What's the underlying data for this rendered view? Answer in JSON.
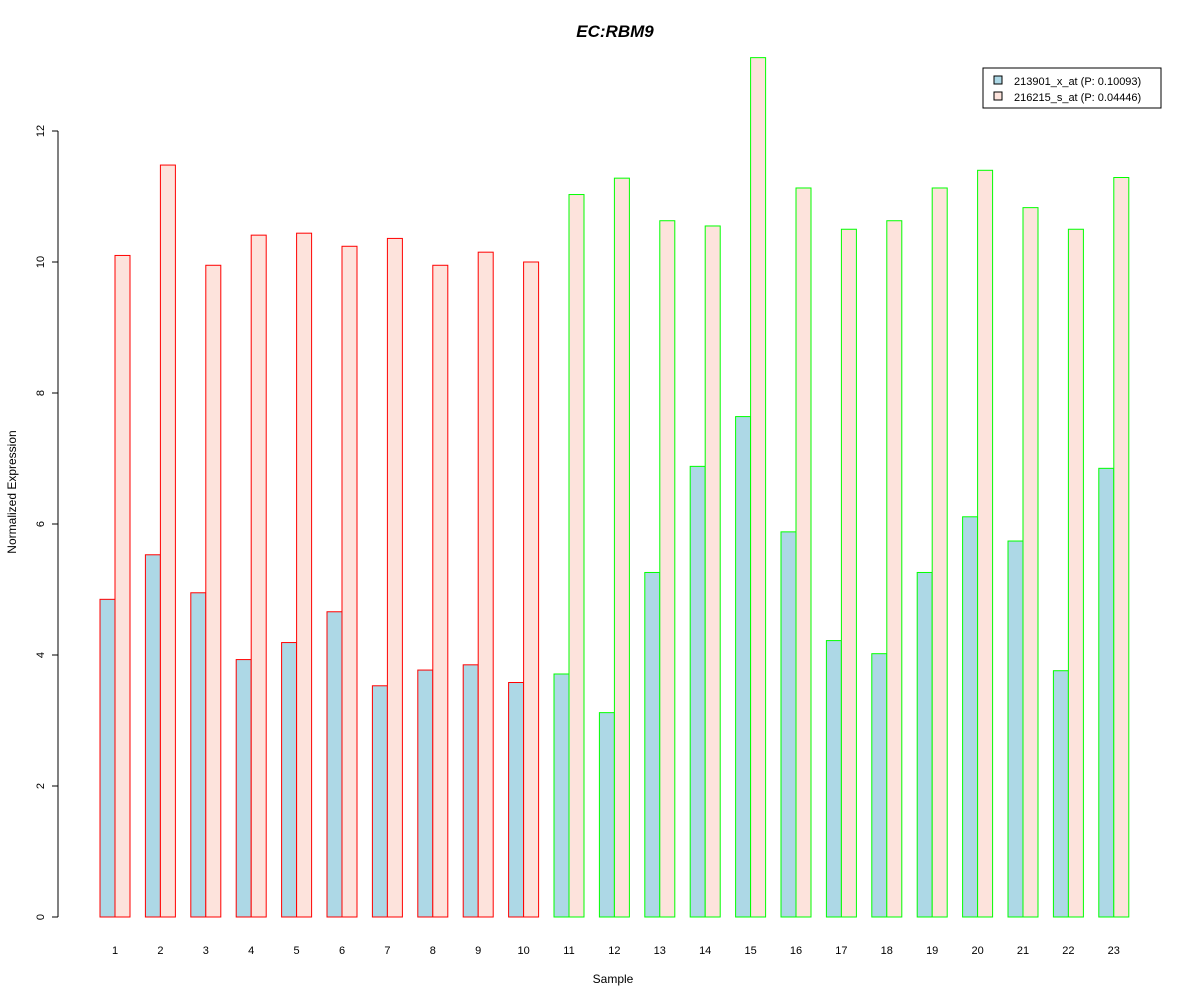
{
  "chart_data": {
    "type": "bar",
    "title": "EC:RBM9",
    "title_color": "#0000CC",
    "xlabel": "Sample",
    "ylabel": "Normalized Expression",
    "ylim": [
      0,
      13.5
    ],
    "yticks": [
      0,
      2,
      4,
      6,
      8,
      10,
      12
    ],
    "grid": false,
    "legend_position": "top-right",
    "categories": [
      "1",
      "2",
      "3",
      "4",
      "5",
      "6",
      "7",
      "8",
      "9",
      "10",
      "11",
      "12",
      "13",
      "14",
      "15",
      "16",
      "17",
      "18",
      "19",
      "20",
      "21",
      "22",
      "23"
    ],
    "series": [
      {
        "name": "213901_x_at (P: 0.10093)",
        "fill": "#ADD8E6",
        "values": [
          4.85,
          5.53,
          4.95,
          3.93,
          4.19,
          4.66,
          3.53,
          3.77,
          3.85,
          3.58,
          3.71,
          3.12,
          5.26,
          6.88,
          7.64,
          5.88,
          4.22,
          4.02,
          5.26,
          6.11,
          5.74,
          3.76,
          6.85
        ]
      },
      {
        "name": "216215_s_at (P: 0.04446)",
        "fill": "#FDE3DC",
        "values": [
          10.1,
          11.48,
          9.95,
          10.41,
          10.44,
          10.24,
          10.36,
          9.95,
          10.15,
          10.0,
          11.03,
          11.28,
          10.63,
          10.55,
          13.12,
          11.13,
          10.5,
          10.63,
          11.13,
          11.4,
          10.83,
          10.5,
          11.29
        ]
      }
    ],
    "group_border_colors": [
      "#FF0000",
      "#FF0000",
      "#FF0000",
      "#FF0000",
      "#FF0000",
      "#FF0000",
      "#FF0000",
      "#FF0000",
      "#FF0000",
      "#FF0000",
      "#00FF00",
      "#00FF00",
      "#00FF00",
      "#00FF00",
      "#00FF00",
      "#00FF00",
      "#00FF00",
      "#00FF00",
      "#00FF00",
      "#00FF00",
      "#00FF00",
      "#00FF00",
      "#00FF00"
    ]
  }
}
